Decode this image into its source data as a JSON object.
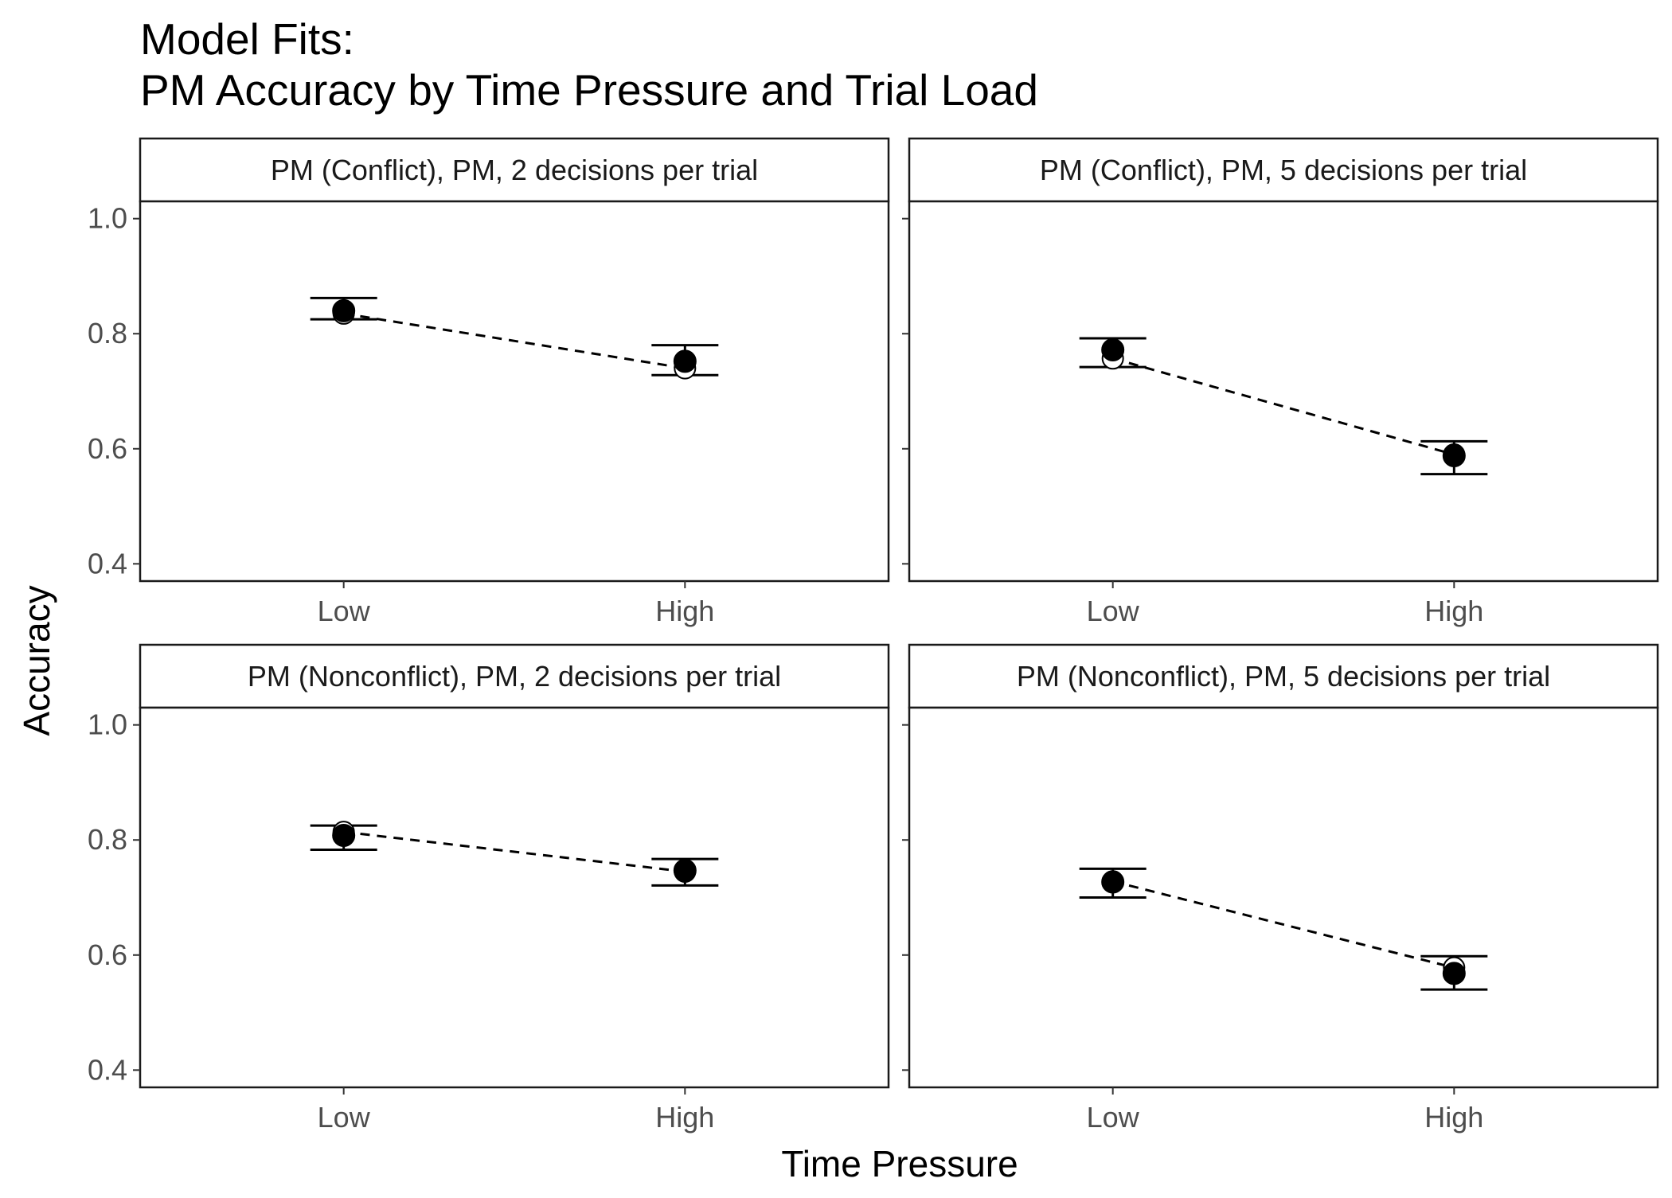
{
  "chart_data": {
    "type": "scatter",
    "title_lines": [
      "Model Fits:",
      "PM Accuracy by Time Pressure and Trial Load"
    ],
    "xlabel": "Time Pressure",
    "ylabel": "Accuracy",
    "categories": [
      "Low",
      "High"
    ],
    "y_ticks": [
      "0.4",
      "0.6",
      "0.8",
      "1.0"
    ],
    "ylim": [
      0.37,
      1.03
    ],
    "grid": false,
    "legend": "none",
    "panels": [
      {
        "label": "PM (Conflict), PM, 2 decisions per trial",
        "observed": [
          0.84,
          0.752
        ],
        "model": [
          0.835,
          0.74
        ],
        "interval_low": [
          0.825,
          0.728
        ],
        "interval_high": [
          0.862,
          0.78
        ]
      },
      {
        "label": "PM (Conflict), PM, 5 decisions per trial",
        "observed": [
          0.772,
          0.588
        ],
        "model": [
          0.757,
          0.59
        ],
        "interval_low": [
          0.742,
          0.556
        ],
        "interval_high": [
          0.792,
          0.613
        ]
      },
      {
        "label": "PM (Nonconflict), PM, 2 decisions per trial",
        "observed": [
          0.808,
          0.747
        ],
        "model": [
          0.814,
          0.745
        ],
        "interval_low": [
          0.783,
          0.721
        ],
        "interval_high": [
          0.825,
          0.767
        ]
      },
      {
        "label": "PM (Nonconflict), PM, 5 decisions per trial",
        "observed": [
          0.727,
          0.568
        ],
        "model": [
          0.728,
          0.578
        ],
        "interval_low": [
          0.7,
          0.54
        ],
        "interval_high": [
          0.75,
          0.598
        ]
      }
    ]
  }
}
